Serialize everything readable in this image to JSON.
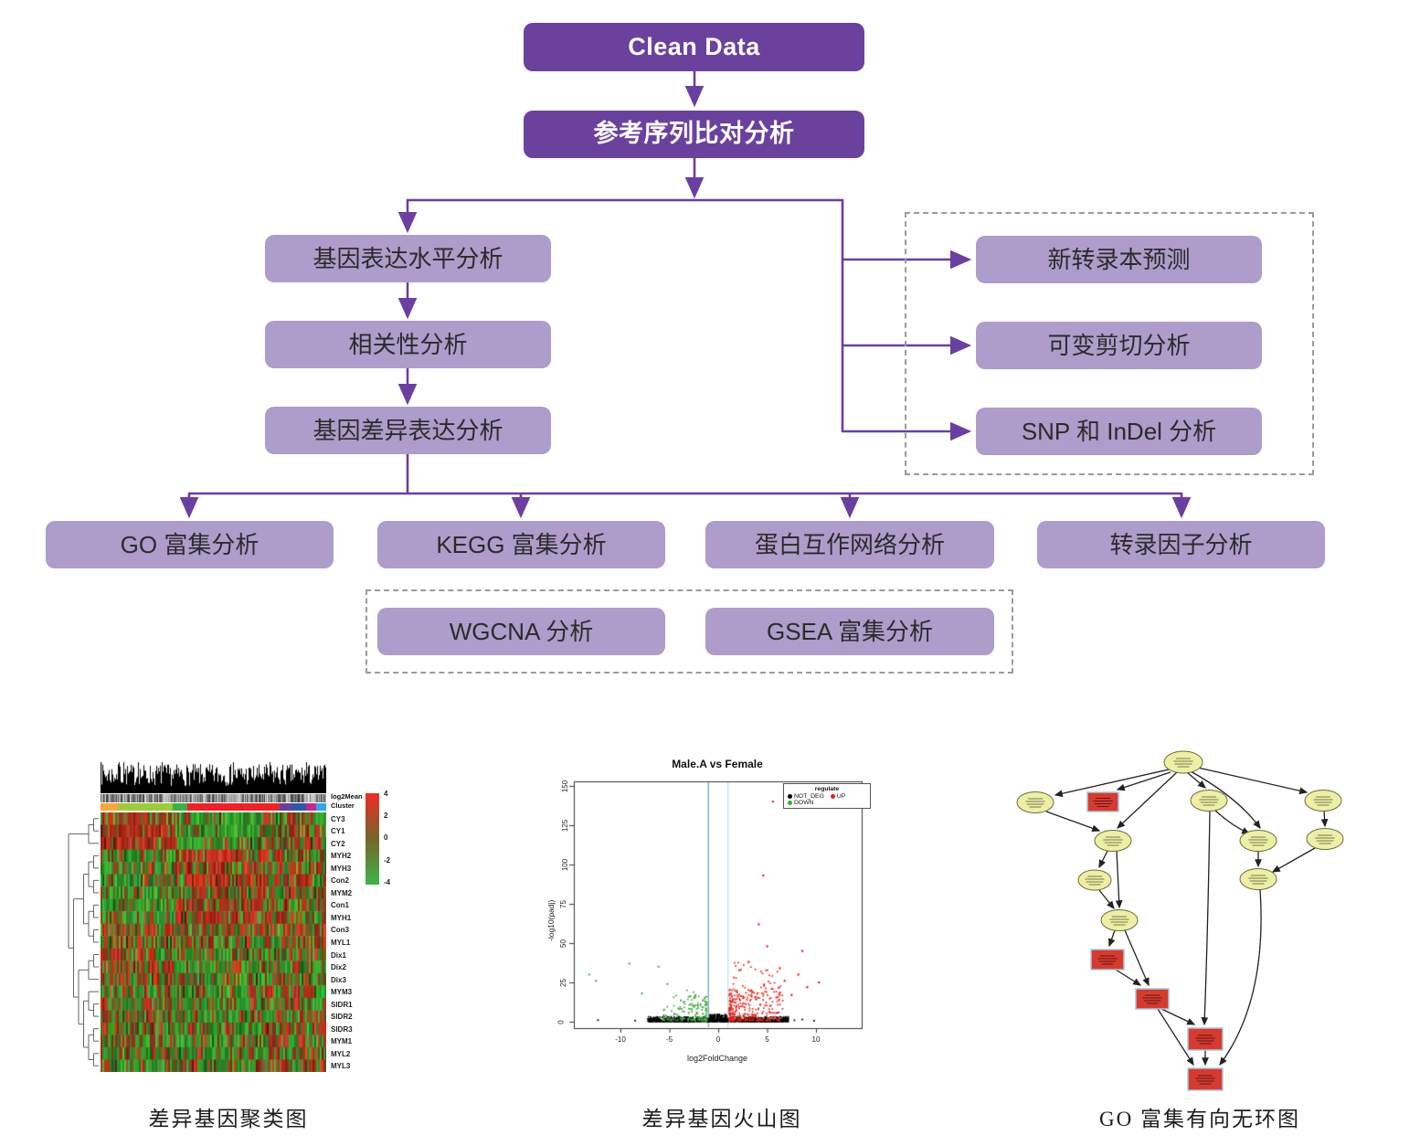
{
  "flowchart": {
    "clean_data": "Clean Data",
    "ref_align": "参考序列比对分析",
    "gene_expression": "基因表达水平分析",
    "correlation": "相关性分析",
    "diff_expression": "基因差异表达分析",
    "novel_transcript": "新转录本预测",
    "alt_splicing": "可变剪切分析",
    "snp_indel": "SNP 和 InDel 分析",
    "go_enrichment": "GO 富集分析",
    "kegg_enrichment": "KEGG 富集分析",
    "ppi_network": "蛋白互作网络分析",
    "tf_analysis": "转录因子分析",
    "wgcna": "WGCNA 分析",
    "gsea": "GSEA 富集分析",
    "colors": {
      "dark_box": "#6B419E",
      "light_box": "#AE9CCB",
      "connector": "#6B3FA0",
      "dashed_border": "#9B9B9B"
    }
  },
  "figures": {
    "heatmap": {
      "caption": "差异基因聚类图",
      "annotation_labels": [
        "log2Mean",
        "Cluster"
      ],
      "row_labels": [
        "CY3",
        "CY1",
        "CY2",
        "MYH2",
        "MYH3",
        "Con2",
        "MYM2",
        "Con1",
        "MYH1",
        "Con3",
        "MYL1",
        "Dix1",
        "Dix2",
        "Dix3",
        "MYM3",
        "SIDR1",
        "SIDR2",
        "SIDR3",
        "MYM1",
        "MYL2",
        "MYL3"
      ],
      "colorbar_ticks": [
        "4",
        "2",
        "0",
        "-2",
        "-4"
      ],
      "colorbar_colors": [
        "#ED2C24",
        "#77642C",
        "#3DB54A"
      ],
      "cluster_segments": [
        {
          "color": "#F2A83B",
          "frac": 0.08
        },
        {
          "color": "#9CCB3B",
          "frac": 0.24
        },
        {
          "color": "#3FAE49",
          "frac": 0.065
        },
        {
          "color": "#EC2227",
          "frac": 0.41
        },
        {
          "color": "#6A3F98",
          "frac": 0.055
        },
        {
          "color": "#2B59A7",
          "frac": 0.06
        },
        {
          "color": "#C9258F",
          "frac": 0.045
        },
        {
          "color": "#29ABE2",
          "frac": 0.045
        }
      ]
    },
    "volcano": {
      "caption": "差异基因火山图",
      "title": "Male.A vs Female",
      "xlabel": "log2FoldChange",
      "ylabel": "-log10(padj)",
      "x_ticks": [
        "-10",
        "-5",
        "0",
        "5",
        "10"
      ],
      "y_ticks": [
        "0",
        "25",
        "50",
        "75",
        "100",
        "125",
        "150"
      ],
      "threshold_lines_x": [
        -1,
        1
      ],
      "threshold_colors": [
        "#6FAED6",
        "#C3DCEE"
      ],
      "legend": {
        "title": "regulate",
        "items": [
          {
            "label": "NOT_DEG",
            "color": "#000000"
          },
          {
            "label": "UP",
            "color": "#E4231B"
          },
          {
            "label": "DOWN",
            "color": "#3FA93F"
          }
        ]
      },
      "point_colors": {
        "not_deg": "#000000",
        "up": "#E4231B",
        "down": "#3FA93F"
      }
    },
    "go_dag": {
      "caption": "GO 富集有向无环图",
      "node_colors": {
        "ellipse_fill": "#EDEFA8",
        "ellipse_stroke": "#6b6b33",
        "rect_fill": "#D63B2F",
        "rect_stroke": "#A9C7DE",
        "edge": "#222222"
      }
    }
  }
}
